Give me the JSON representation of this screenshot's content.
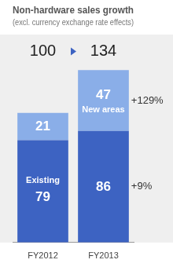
{
  "chart_data": {
    "type": "bar",
    "title": "Non-hardware sales growth",
    "subtitle": "(excl. currency exchange rate effects)",
    "categories": [
      "FY2012",
      "FY2013"
    ],
    "series": [
      {
        "name": "Existing",
        "color": "#3d63c2",
        "values": [
          79,
          86
        ]
      },
      {
        "name": "New areas",
        "color": "#8aaee8",
        "values": [
          21,
          47
        ]
      }
    ],
    "stacked": true,
    "data_labels": true,
    "total_labels": [
      "100",
      "134"
    ],
    "annotations": [
      {
        "text": "+129%",
        "series": "New areas"
      },
      {
        "text": "+9%",
        "series": "Existing"
      }
    ],
    "ylim": [
      0,
      134
    ],
    "tick_labels": "x",
    "grid": false
  }
}
